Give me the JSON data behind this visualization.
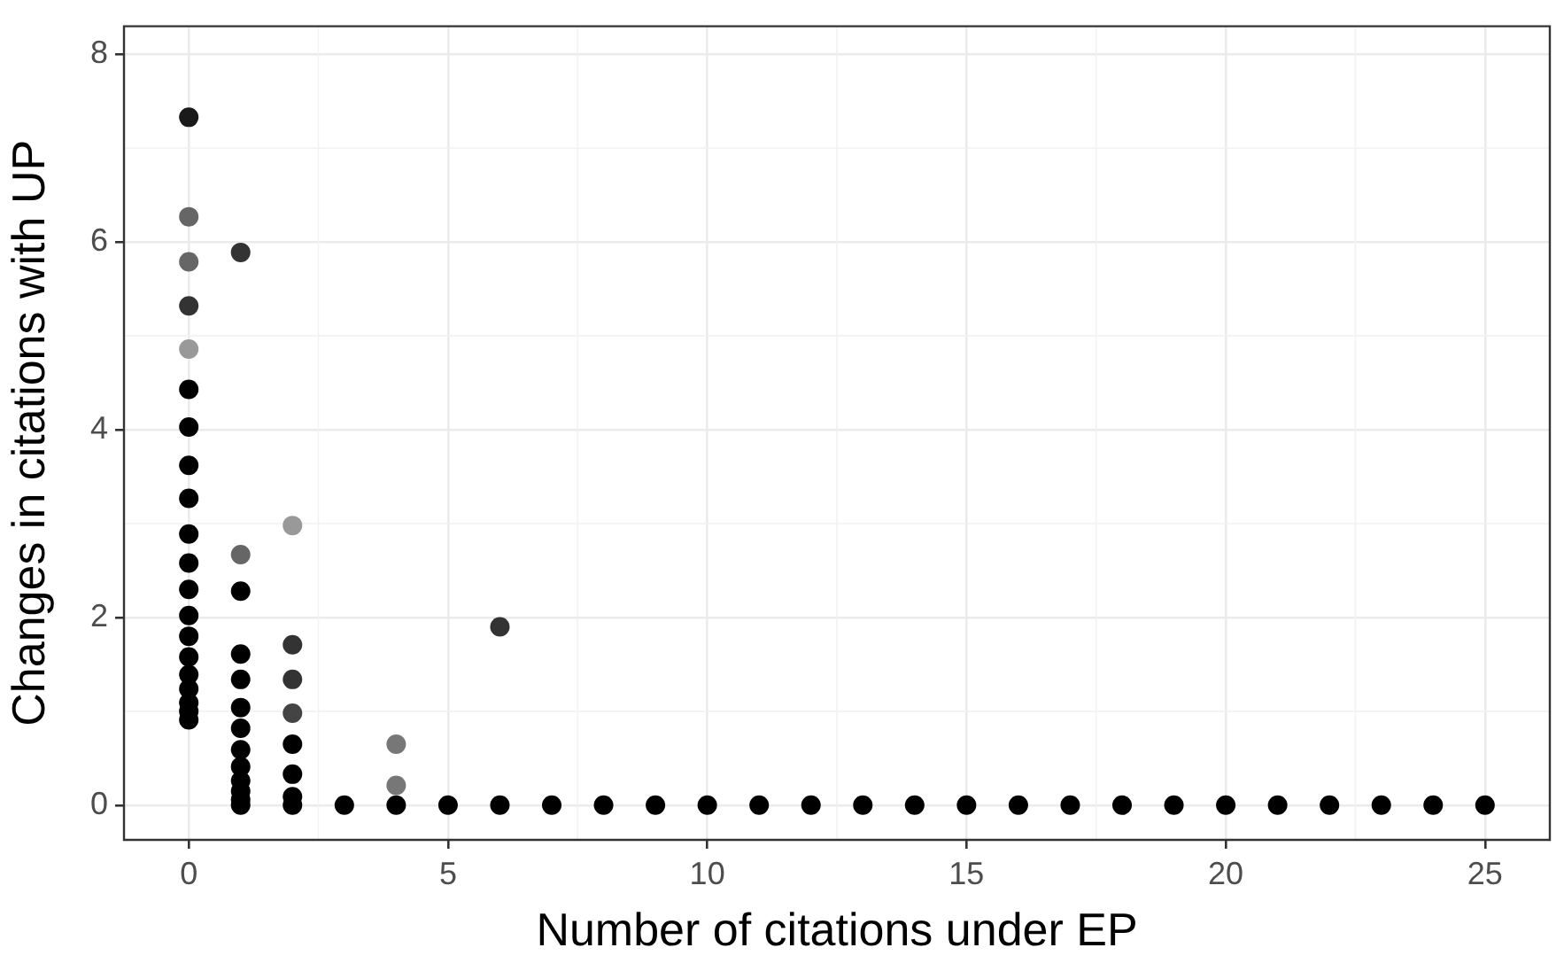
{
  "chart_data": {
    "type": "scatter",
    "xlabel": "Number of citations under EP",
    "ylabel": "Changes in citations with UP",
    "series": [
      {
        "x": [
          0,
          0,
          0,
          0,
          0,
          0,
          0,
          0,
          0,
          0,
          0,
          0,
          0,
          0,
          0,
          0,
          0,
          0,
          0,
          0,
          1,
          1,
          1,
          1,
          1,
          1,
          1,
          1,
          1,
          1,
          1,
          1,
          1,
          2,
          2,
          2,
          2,
          2,
          2,
          2,
          2,
          3,
          4,
          4,
          4,
          5,
          6,
          6,
          7,
          8,
          9,
          10,
          11,
          12,
          13,
          14,
          15,
          16,
          17,
          18,
          19,
          20,
          21,
          22,
          23,
          24,
          25
        ],
        "values": [
          7.33,
          6.27,
          5.79,
          5.32,
          4.86,
          4.43,
          4.03,
          3.62,
          3.27,
          2.89,
          2.58,
          2.3,
          2.02,
          1.8,
          1.58,
          1.39,
          1.24,
          1.09,
          1,
          0.91,
          5.89,
          2.67,
          2.28,
          1.61,
          1.34,
          1.04,
          0.82,
          0.59,
          0.41,
          0.26,
          0.15,
          0.06,
          0,
          2.98,
          1.71,
          1.34,
          0.98,
          0.65,
          0.33,
          0.09,
          0,
          0,
          0.65,
          0.21,
          0,
          0,
          1.9,
          0,
          0,
          0,
          0,
          0,
          0,
          0,
          0,
          0,
          0,
          0,
          0,
          0,
          0,
          0,
          0,
          0,
          0,
          0,
          0
        ],
        "colors": [
          "#1a1a1a",
          "#666666",
          "#666666",
          "#333333",
          "#999999",
          "#000000",
          "#000000",
          "#000000",
          "#000000",
          "#000000",
          "#000000",
          "#000000",
          "#000000",
          "#000000",
          "#000000",
          "#000000",
          "#000000",
          "#000000",
          "#000000",
          "#000000",
          "#333333",
          "#666666",
          "#000000",
          "#000000",
          "#000000",
          "#000000",
          "#000000",
          "#000000",
          "#000000",
          "#000000",
          "#000000",
          "#000000",
          "#000000",
          "#999999",
          "#333333",
          "#333333",
          "#444444",
          "#000000",
          "#000000",
          "#000000",
          "#000000",
          "#000000",
          "#777777",
          "#777777",
          "#000000",
          "#000000",
          "#333333",
          "#000000",
          "#000000",
          "#000000",
          "#000000",
          "#000000",
          "#000000",
          "#000000",
          "#000000",
          "#000000",
          "#000000",
          "#000000",
          "#000000",
          "#000000",
          "#000000",
          "#000000",
          "#000000",
          "#000000",
          "#000000",
          "#000000",
          "#000000"
        ]
      }
    ],
    "xlim": [
      -1.25,
      26.25
    ],
    "ylim": [
      -0.37,
      8.3
    ],
    "xticks": [
      0,
      5,
      10,
      15,
      20,
      25
    ],
    "yticks": [
      0,
      2,
      4,
      6,
      8
    ],
    "grid": true,
    "legend": false,
    "marker": "circle"
  }
}
